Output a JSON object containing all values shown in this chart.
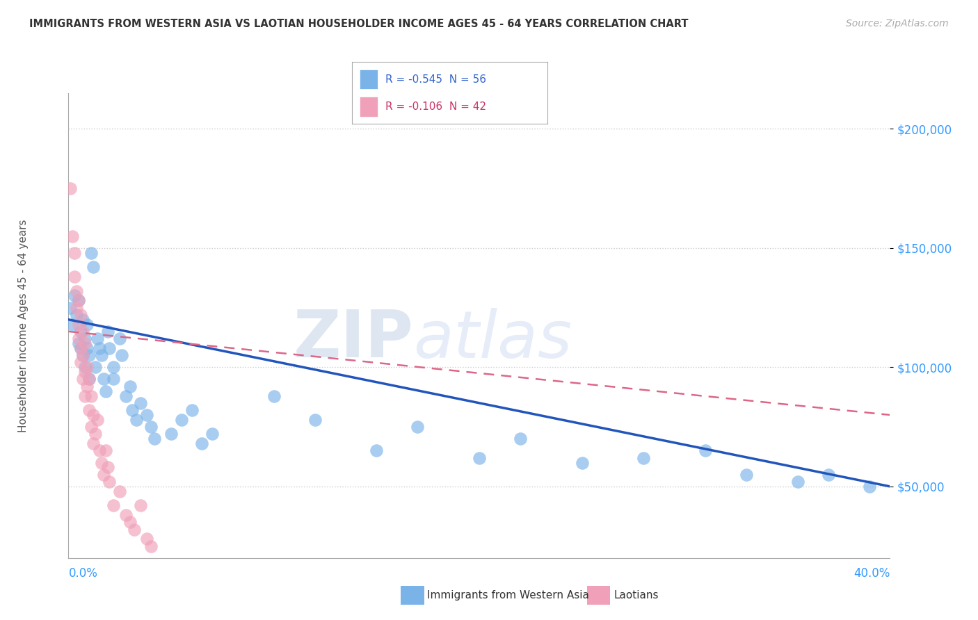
{
  "title": "IMMIGRANTS FROM WESTERN ASIA VS LAOTIAN HOUSEHOLDER INCOME AGES 45 - 64 YEARS CORRELATION CHART",
  "source": "Source: ZipAtlas.com",
  "ylabel": "Householder Income Ages 45 - 64 years",
  "blue_r": "R = -0.545",
  "blue_n": "N = 56",
  "pink_r": "R = -0.106",
  "pink_n": "N = 42",
  "legend_bottom_blue": "Immigrants from Western Asia",
  "legend_bottom_pink": "Laotians",
  "blue_points": [
    [
      0.001,
      125000
    ],
    [
      0.002,
      118000
    ],
    [
      0.003,
      130000
    ],
    [
      0.004,
      122000
    ],
    [
      0.005,
      128000
    ],
    [
      0.005,
      110000
    ],
    [
      0.006,
      115000
    ],
    [
      0.006,
      108000
    ],
    [
      0.007,
      105000
    ],
    [
      0.007,
      120000
    ],
    [
      0.008,
      112000
    ],
    [
      0.008,
      100000
    ],
    [
      0.009,
      118000
    ],
    [
      0.009,
      108000
    ],
    [
      0.01,
      95000
    ],
    [
      0.01,
      105000
    ],
    [
      0.011,
      148000
    ],
    [
      0.012,
      142000
    ],
    [
      0.013,
      100000
    ],
    [
      0.014,
      112000
    ],
    [
      0.015,
      108000
    ],
    [
      0.016,
      105000
    ],
    [
      0.017,
      95000
    ],
    [
      0.018,
      90000
    ],
    [
      0.019,
      115000
    ],
    [
      0.02,
      108000
    ],
    [
      0.022,
      100000
    ],
    [
      0.022,
      95000
    ],
    [
      0.025,
      112000
    ],
    [
      0.026,
      105000
    ],
    [
      0.028,
      88000
    ],
    [
      0.03,
      92000
    ],
    [
      0.031,
      82000
    ],
    [
      0.033,
      78000
    ],
    [
      0.035,
      85000
    ],
    [
      0.038,
      80000
    ],
    [
      0.04,
      75000
    ],
    [
      0.042,
      70000
    ],
    [
      0.05,
      72000
    ],
    [
      0.055,
      78000
    ],
    [
      0.06,
      82000
    ],
    [
      0.065,
      68000
    ],
    [
      0.07,
      72000
    ],
    [
      0.1,
      88000
    ],
    [
      0.12,
      78000
    ],
    [
      0.15,
      65000
    ],
    [
      0.17,
      75000
    ],
    [
      0.2,
      62000
    ],
    [
      0.22,
      70000
    ],
    [
      0.25,
      60000
    ],
    [
      0.28,
      62000
    ],
    [
      0.31,
      65000
    ],
    [
      0.33,
      55000
    ],
    [
      0.355,
      52000
    ],
    [
      0.37,
      55000
    ],
    [
      0.39,
      50000
    ]
  ],
  "pink_points": [
    [
      0.001,
      175000
    ],
    [
      0.002,
      155000
    ],
    [
      0.003,
      148000
    ],
    [
      0.003,
      138000
    ],
    [
      0.004,
      132000
    ],
    [
      0.004,
      125000
    ],
    [
      0.005,
      128000
    ],
    [
      0.005,
      118000
    ],
    [
      0.005,
      112000
    ],
    [
      0.006,
      122000
    ],
    [
      0.006,
      108000
    ],
    [
      0.006,
      102000
    ],
    [
      0.007,
      115000
    ],
    [
      0.007,
      105000
    ],
    [
      0.007,
      95000
    ],
    [
      0.008,
      110000
    ],
    [
      0.008,
      98000
    ],
    [
      0.008,
      88000
    ],
    [
      0.009,
      100000
    ],
    [
      0.009,
      92000
    ],
    [
      0.01,
      95000
    ],
    [
      0.01,
      82000
    ],
    [
      0.011,
      88000
    ],
    [
      0.011,
      75000
    ],
    [
      0.012,
      80000
    ],
    [
      0.012,
      68000
    ],
    [
      0.013,
      72000
    ],
    [
      0.014,
      78000
    ],
    [
      0.015,
      65000
    ],
    [
      0.016,
      60000
    ],
    [
      0.017,
      55000
    ],
    [
      0.018,
      65000
    ],
    [
      0.019,
      58000
    ],
    [
      0.02,
      52000
    ],
    [
      0.022,
      42000
    ],
    [
      0.025,
      48000
    ],
    [
      0.028,
      38000
    ],
    [
      0.03,
      35000
    ],
    [
      0.032,
      32000
    ],
    [
      0.035,
      42000
    ],
    [
      0.038,
      28000
    ],
    [
      0.04,
      25000
    ]
  ],
  "blue_line": {
    "x0": 0.0,
    "y0": 120000,
    "x1": 0.4,
    "y1": 50000
  },
  "pink_line": {
    "x0": 0.0,
    "y0": 115000,
    "x1": 0.4,
    "y1": 80000
  },
  "xlim": [
    0.0,
    0.4
  ],
  "ylim": [
    20000,
    215000
  ],
  "yticks": [
    50000,
    100000,
    150000,
    200000
  ],
  "ytick_labels": [
    "$50,000",
    "$100,000",
    "$150,000",
    "$200,000"
  ],
  "blue_color": "#7ab3e8",
  "pink_color": "#f0a0b8",
  "blue_line_color": "#2255bb",
  "pink_line_color": "#dd6688",
  "background_color": "#ffffff",
  "grid_color": "#cccccc"
}
